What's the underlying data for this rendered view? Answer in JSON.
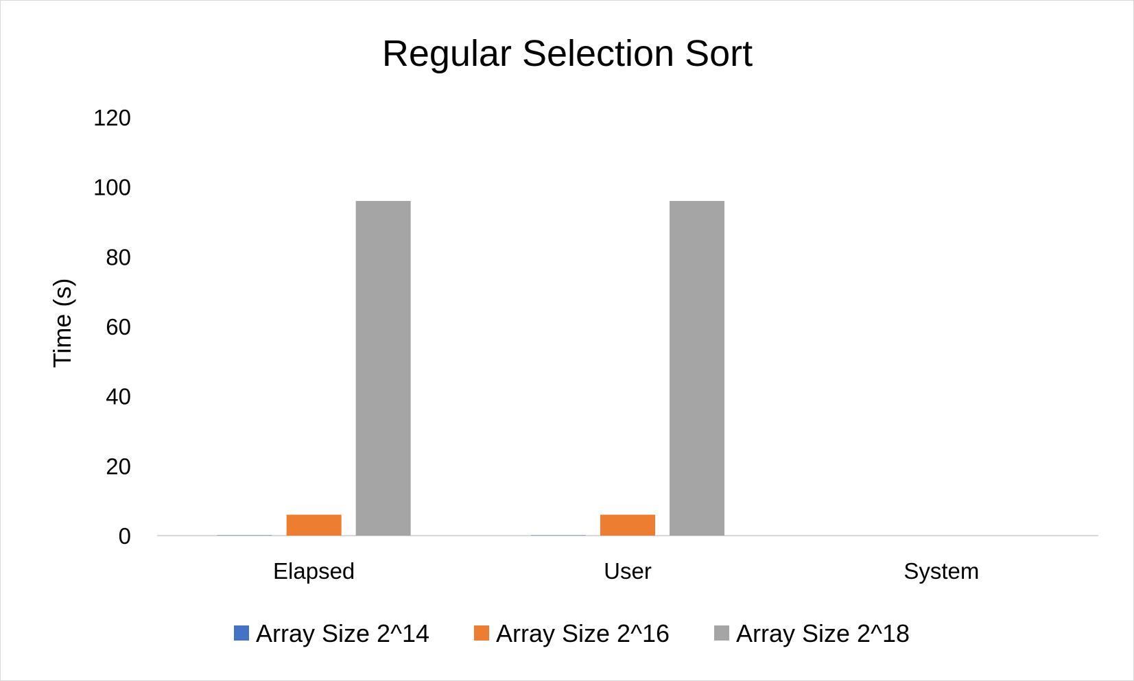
{
  "chart_data": {
    "type": "bar",
    "title": "Regular Selection Sort",
    "xlabel": "",
    "ylabel": "Time (s)",
    "ylim": [
      0,
      120
    ],
    "yticks": [
      0,
      20,
      40,
      60,
      80,
      100,
      120
    ],
    "categories": [
      "Elapsed",
      "User",
      "System"
    ],
    "series": [
      {
        "name": "Array Size 2^14",
        "color": "#4472C4",
        "values": [
          0.09,
          0.09,
          0.0
        ]
      },
      {
        "name": "Array Size 2^16",
        "color": "#ED7D31",
        "values": [
          6.0,
          6.0,
          0.0
        ]
      },
      {
        "name": "Array Size 2^18",
        "color": "#A5A5A5",
        "values": [
          96.0,
          96.0,
          0.0
        ]
      }
    ],
    "grid": false,
    "legend_position": "bottom"
  }
}
